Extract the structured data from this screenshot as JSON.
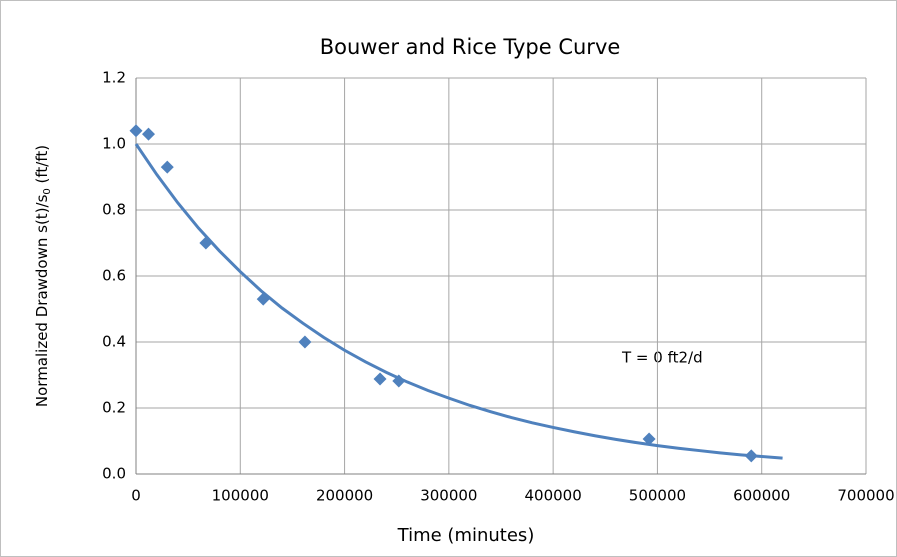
{
  "chart_data": {
    "type": "scatter",
    "title": "Bouwer and Rice Type Curve",
    "xlabel": "Time (minutes)",
    "ylabel": {
      "text": "Normalized Drawdown s(t)/s",
      "sub": "0",
      "after": " (ft/ft)"
    },
    "annotation": "T = 0 ft2/d",
    "xlim": [
      0,
      700000
    ],
    "xticks": [
      0,
      100000,
      200000,
      300000,
      400000,
      500000,
      600000,
      700000
    ],
    "ylim": [
      0,
      1.2
    ],
    "yticks": [
      {
        "value": 0,
        "label": "0.0"
      },
      0.2,
      0.4,
      0.6,
      0.8,
      {
        "value": 1,
        "label": "1.0"
      },
      1.2
    ],
    "grid": true,
    "points": {
      "color": "#4f81bd",
      "x": [
        0,
        12000,
        30000,
        67000,
        122000,
        162000,
        234000,
        252000,
        492000,
        590000
      ],
      "values": [
        1.04,
        1.03,
        0.93,
        0.7,
        0.53,
        0.4,
        0.288,
        0.282,
        0.106,
        0.055
      ]
    },
    "curve": {
      "color": "#4f81bd",
      "x": [
        0,
        20000,
        40000,
        60000,
        80000,
        100000,
        120000,
        140000,
        160000,
        180000,
        200000,
        220000,
        240000,
        260000,
        280000,
        300000,
        320000,
        340000,
        360000,
        380000,
        400000,
        420000,
        440000,
        460000,
        480000,
        500000,
        520000,
        540000,
        560000,
        580000,
        600000,
        620000
      ],
      "values": [
        1.0,
        0.907,
        0.822,
        0.745,
        0.676,
        0.613,
        0.555,
        0.503,
        0.457,
        0.414,
        0.375,
        0.34,
        0.308,
        0.279,
        0.253,
        0.23,
        0.208,
        0.189,
        0.171,
        0.155,
        0.141,
        0.128,
        0.116,
        0.105,
        0.095,
        0.086,
        0.078,
        0.071,
        0.064,
        0.058,
        0.053,
        0.048
      ]
    }
  }
}
